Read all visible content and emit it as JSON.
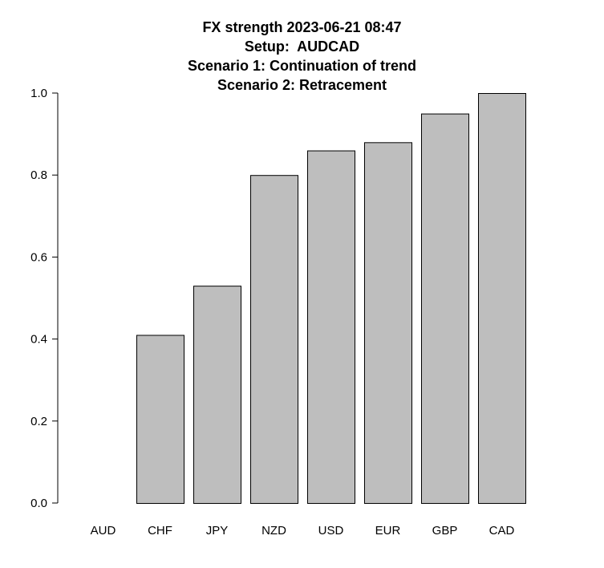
{
  "chart_data": {
    "type": "bar",
    "title_lines": [
      "FX strength 2023-06-21 08:47",
      "Setup:  AUDCAD",
      "Scenario 1: Continuation of trend",
      "Scenario 2: Retracement"
    ],
    "categories": [
      "AUD",
      "CHF",
      "JPY",
      "NZD",
      "USD",
      "EUR",
      "GBP",
      "CAD"
    ],
    "values": [
      0.0,
      0.41,
      0.53,
      0.8,
      0.86,
      0.88,
      0.95,
      1.0
    ],
    "ylim": [
      0,
      1
    ],
    "yticks": [
      "0.0",
      "0.2",
      "0.4",
      "0.6",
      "0.8",
      "1.0"
    ],
    "xlabel": "",
    "ylabel": "",
    "grid": false,
    "bar_color": "#bebebe",
    "bar_border_color": "#000000"
  }
}
